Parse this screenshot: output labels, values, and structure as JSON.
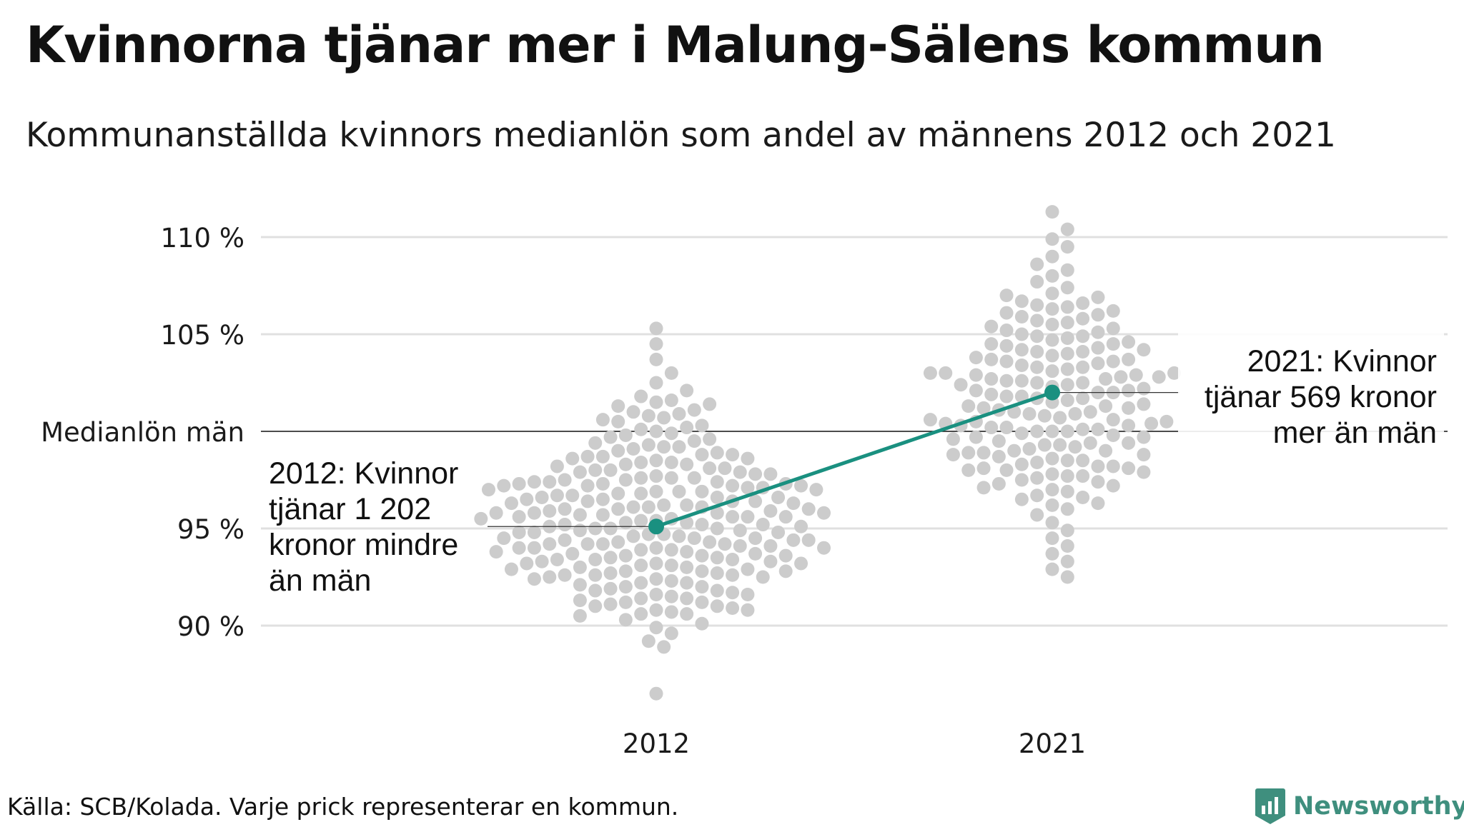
{
  "title": "Kvinnorna tjänar mer i Malung-Sälens kommun",
  "subtitle": "Kommunanställda kvinnors medianlön som andel av männens 2012 och 2021",
  "source": "Källa: SCB/Kolada. Varje prick representerar en kommun.",
  "brand": {
    "name": "Newsworthy",
    "icon": "newsworthy-logo-icon",
    "color": "#3f8f7e"
  },
  "colors": {
    "dots": "#cccccc",
    "highlight": "#1a9080",
    "grid": "#e0e0e0",
    "reference": "#111111"
  },
  "chart_data": {
    "type": "scatter",
    "subtype": "beeswarm",
    "categories": [
      "2012",
      "2021"
    ],
    "ylim": [
      86,
      112
    ],
    "yticks": [
      {
        "value": 110,
        "label": "110 %"
      },
      {
        "value": 105,
        "label": "105 %"
      },
      {
        "value": 100,
        "label": "Medianlön män",
        "reference": true
      },
      {
        "value": 95,
        "label": "95 %"
      },
      {
        "value": 90,
        "label": "90 %"
      }
    ],
    "grid": true,
    "swarms": [
      {
        "category": "2012",
        "values": [
          105.3,
          104.5,
          103.7,
          103.0,
          102.5,
          102.1,
          101.8,
          101.6,
          101.4,
          101.3,
          101.1,
          100.9,
          100.8,
          100.6,
          100.5,
          100.3,
          100.2,
          100.0,
          99.9,
          99.8,
          99.6,
          99.5,
          99.4,
          99.3,
          99.2,
          99.1,
          99.0,
          98.9,
          98.8,
          98.7,
          98.6,
          98.5,
          98.4,
          98.3,
          98.2,
          98.1,
          98.0,
          97.9,
          97.8,
          97.7,
          97.6,
          97.5,
          97.4,
          97.3,
          97.2,
          97.1,
          97.0,
          96.9,
          96.8,
          96.7,
          96.6,
          96.5,
          96.4,
          96.3,
          96.2,
          96.1,
          96.0,
          95.9,
          95.8,
          95.7,
          95.6,
          95.5,
          95.4,
          95.3,
          95.2,
          95.1,
          95.0,
          94.9,
          94.8,
          94.7,
          94.6,
          94.5,
          94.4,
          94.3,
          94.2,
          94.1,
          94.0,
          93.9,
          93.8,
          93.7,
          93.6,
          93.5,
          93.4,
          93.3,
          93.2,
          93.1,
          93.0,
          92.9,
          92.8,
          92.7,
          92.6,
          92.5,
          92.4,
          92.3,
          92.2,
          92.1,
          92.0,
          91.9,
          91.8,
          91.7,
          91.6,
          91.5,
          91.4,
          91.3,
          91.2,
          91.1,
          91.0,
          90.9,
          90.8,
          90.7,
          90.6,
          90.5,
          90.3,
          90.1,
          89.9,
          89.6,
          89.2,
          88.9,
          86.5,
          101.5,
          101.0,
          100.7,
          100.1,
          99.7,
          99.2,
          98.8,
          98.6,
          98.3,
          98.0,
          97.8,
          97.5,
          97.3,
          97.1,
          96.9,
          96.6,
          96.4,
          96.2,
          96.0,
          95.8,
          95.6,
          95.4,
          95.2,
          95.0,
          94.8,
          94.6,
          94.4,
          94.2,
          94.0,
          93.8,
          93.6,
          93.4,
          93.2,
          93.0,
          92.8,
          92.6,
          92.4,
          92.2,
          92.0,
          91.8,
          91.6,
          91.4,
          91.2,
          91.0,
          90.8,
          90.6,
          98.7,
          98.4,
          98.1,
          97.9,
          97.6,
          97.4,
          97.2,
          96.9,
          96.7,
          96.5,
          96.3,
          96.1,
          95.9,
          95.7,
          95.5,
          95.3,
          95.1,
          94.9,
          94.7,
          94.5,
          94.3,
          94.1,
          93.9,
          93.7,
          93.5,
          93.3,
          93.1,
          92.9,
          92.7,
          92.5,
          97.3,
          97.0,
          96.8,
          96.4,
          96.0,
          95.6,
          95.2,
          94.8,
          94.4,
          94.0,
          93.6,
          93.2,
          92.8,
          97.6,
          97.2,
          96.6,
          95.8,
          95.0,
          94.2,
          93.4,
          97.4,
          95.8,
          94.2,
          92.6,
          97.2,
          95.6,
          94.0,
          96.1,
          94.5
        ],
        "highlight": 95.1,
        "annotation": [
          "2012: Kvinnor",
          "tjänar 1 202",
          "kronor mindre",
          "än män"
        ]
      },
      {
        "category": "2021",
        "values": [
          111.3,
          110.4,
          109.9,
          109.5,
          109.0,
          108.6,
          108.3,
          108.0,
          107.7,
          107.4,
          107.1,
          106.9,
          106.7,
          106.5,
          106.3,
          106.1,
          105.9,
          105.7,
          105.5,
          105.3,
          105.1,
          104.9,
          104.7,
          104.5,
          104.3,
          104.1,
          103.9,
          103.7,
          103.5,
          103.3,
          103.1,
          102.9,
          102.7,
          102.5,
          102.3,
          102.1,
          101.9,
          101.7,
          101.5,
          101.3,
          101.1,
          100.9,
          100.7,
          100.5,
          100.3,
          100.1,
          99.9,
          99.7,
          99.5,
          99.3,
          99.1,
          98.9,
          98.7,
          98.5,
          98.3,
          98.1,
          97.9,
          97.7,
          97.5,
          97.3,
          97.1,
          96.9,
          96.7,
          96.5,
          96.3,
          96.0,
          95.7,
          95.3,
          94.9,
          94.5,
          94.1,
          93.7,
          93.3,
          92.9,
          92.5,
          107.0,
          106.6,
          106.2,
          105.8,
          105.4,
          105.0,
          104.6,
          104.2,
          103.8,
          103.4,
          103.0,
          102.6,
          102.2,
          101.8,
          101.4,
          101.0,
          100.6,
          100.2,
          99.8,
          99.4,
          99.0,
          98.6,
          98.2,
          97.8,
          97.4,
          97.0,
          96.6,
          96.2,
          106.4,
          106.0,
          105.6,
          105.2,
          104.8,
          104.4,
          104.0,
          103.6,
          103.2,
          102.8,
          102.4,
          102.0,
          101.6,
          101.2,
          100.8,
          100.4,
          100.0,
          99.6,
          99.2,
          98.8,
          98.4,
          98.0,
          97.6,
          97.2,
          104.9,
          104.5,
          104.1,
          103.7,
          103.3,
          102.9,
          102.5,
          102.1,
          101.7,
          101.3,
          100.9,
          100.5,
          100.1,
          99.7,
          99.3,
          98.9,
          98.5,
          98.1,
          97.7,
          104.2,
          103.6,
          103.0,
          102.4,
          101.8,
          101.2,
          100.6,
          100.0,
          99.4,
          98.8,
          98.2,
          103.0,
          102.0,
          101.0,
          100.0,
          99.0,
          98.0,
          102.8,
          102.6,
          100.4,
          100.2,
          102.7,
          100.3
        ],
        "highlight": 102.0,
        "annotation": [
          "2021: Kvinnor",
          "tjänar 569 kronor",
          "mer än män"
        ]
      }
    ]
  }
}
